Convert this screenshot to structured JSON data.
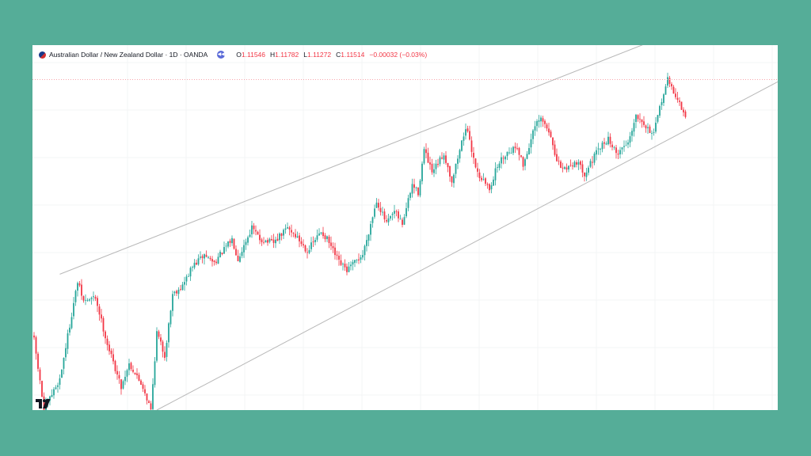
{
  "legend": {
    "symbol_title": "Australian Dollar / New Zealand Dollar · 1D · OANDA",
    "open_key": "O",
    "open_value": "1.11546",
    "high_key": "H",
    "high_value": "1.11782",
    "low_key": "L",
    "low_value": "1.11272",
    "close_key": "C",
    "close_value": "1.11514",
    "change": "−0.00032 (−0.03%)"
  },
  "colors": {
    "up": "#26a69a",
    "down": "#f23645",
    "channel_line": "#b8b8b8",
    "price_line": "#f7a5ab",
    "grid": "#f3f4f6",
    "background": "#55ad98"
  },
  "icons": {
    "replay": "replay-icon",
    "logo": "tradingview-logo-icon",
    "flag": "aud-nzd-flag-icon"
  },
  "chart_data": {
    "type": "candlestick",
    "y_range": [
      1.03,
      1.124
    ],
    "last_price": 1.11514,
    "close_path": [
      [
        0,
        1.048
      ],
      [
        5,
        1.03
      ],
      [
        13,
        1.038
      ],
      [
        22,
        1.063
      ],
      [
        25,
        1.058
      ],
      [
        31,
        1.059
      ],
      [
        37,
        1.047
      ],
      [
        44,
        1.036
      ],
      [
        48,
        1.042
      ],
      [
        55,
        1.036
      ],
      [
        59,
        1.03
      ],
      [
        62,
        1.05
      ],
      [
        66,
        1.044
      ],
      [
        70,
        1.06
      ],
      [
        75,
        1.062
      ],
      [
        80,
        1.067
      ],
      [
        86,
        1.07
      ],
      [
        91,
        1.068
      ],
      [
        100,
        1.074
      ],
      [
        103,
        1.069
      ],
      [
        110,
        1.077
      ],
      [
        114,
        1.074
      ],
      [
        121,
        1.073
      ],
      [
        128,
        1.077
      ],
      [
        132,
        1.075
      ],
      [
        138,
        1.071
      ],
      [
        145,
        1.076
      ],
      [
        148,
        1.074
      ],
      [
        154,
        1.068
      ],
      [
        158,
        1.066
      ],
      [
        166,
        1.07
      ],
      [
        173,
        1.084
      ],
      [
        178,
        1.078
      ],
      [
        182,
        1.081
      ],
      [
        186,
        1.078
      ],
      [
        191,
        1.088
      ],
      [
        194,
        1.086
      ],
      [
        197,
        1.097
      ],
      [
        201,
        1.091
      ],
      [
        207,
        1.096
      ],
      [
        211,
        1.089
      ],
      [
        218,
        1.103
      ],
      [
        224,
        1.091
      ],
      [
        230,
        1.087
      ],
      [
        234,
        1.093
      ],
      [
        238,
        1.096
      ],
      [
        244,
        1.098
      ],
      [
        247,
        1.093
      ],
      [
        253,
        1.103
      ],
      [
        256,
        1.105
      ],
      [
        261,
        1.101
      ],
      [
        263,
        1.095
      ],
      [
        267,
        1.092
      ],
      [
        274,
        1.094
      ],
      [
        278,
        1.091
      ],
      [
        285,
        1.097
      ],
      [
        290,
        1.1
      ],
      [
        294,
        1.096
      ],
      [
        300,
        1.099
      ],
      [
        304,
        1.106
      ],
      [
        307,
        1.105
      ],
      [
        309,
        1.103
      ],
      [
        313,
        1.101
      ],
      [
        317,
        1.11
      ],
      [
        320,
        1.115
      ],
      [
        323,
        1.112
      ],
      [
        326,
        1.109
      ],
      [
        329,
        1.105
      ]
    ],
    "channel": {
      "upper": [
        [
          13,
          1.065
        ],
        [
          307,
          1.124
        ]
      ],
      "lower": [
        [
          62,
          1.03
        ],
        [
          355,
          1.109
        ]
      ]
    }
  }
}
